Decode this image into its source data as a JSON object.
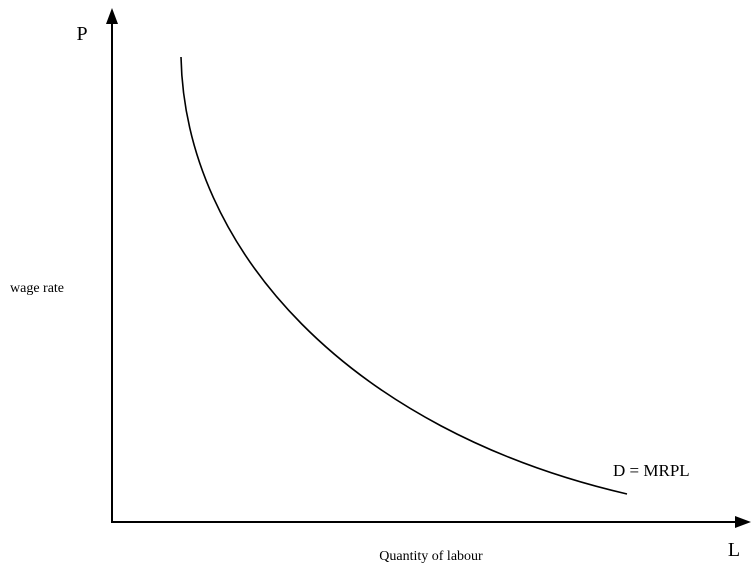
{
  "axes": {
    "y_label": "P",
    "x_label": "L",
    "y_title": "wage rate",
    "x_title": "Quantity of labour"
  },
  "curve_label": "D = MRPL"
}
